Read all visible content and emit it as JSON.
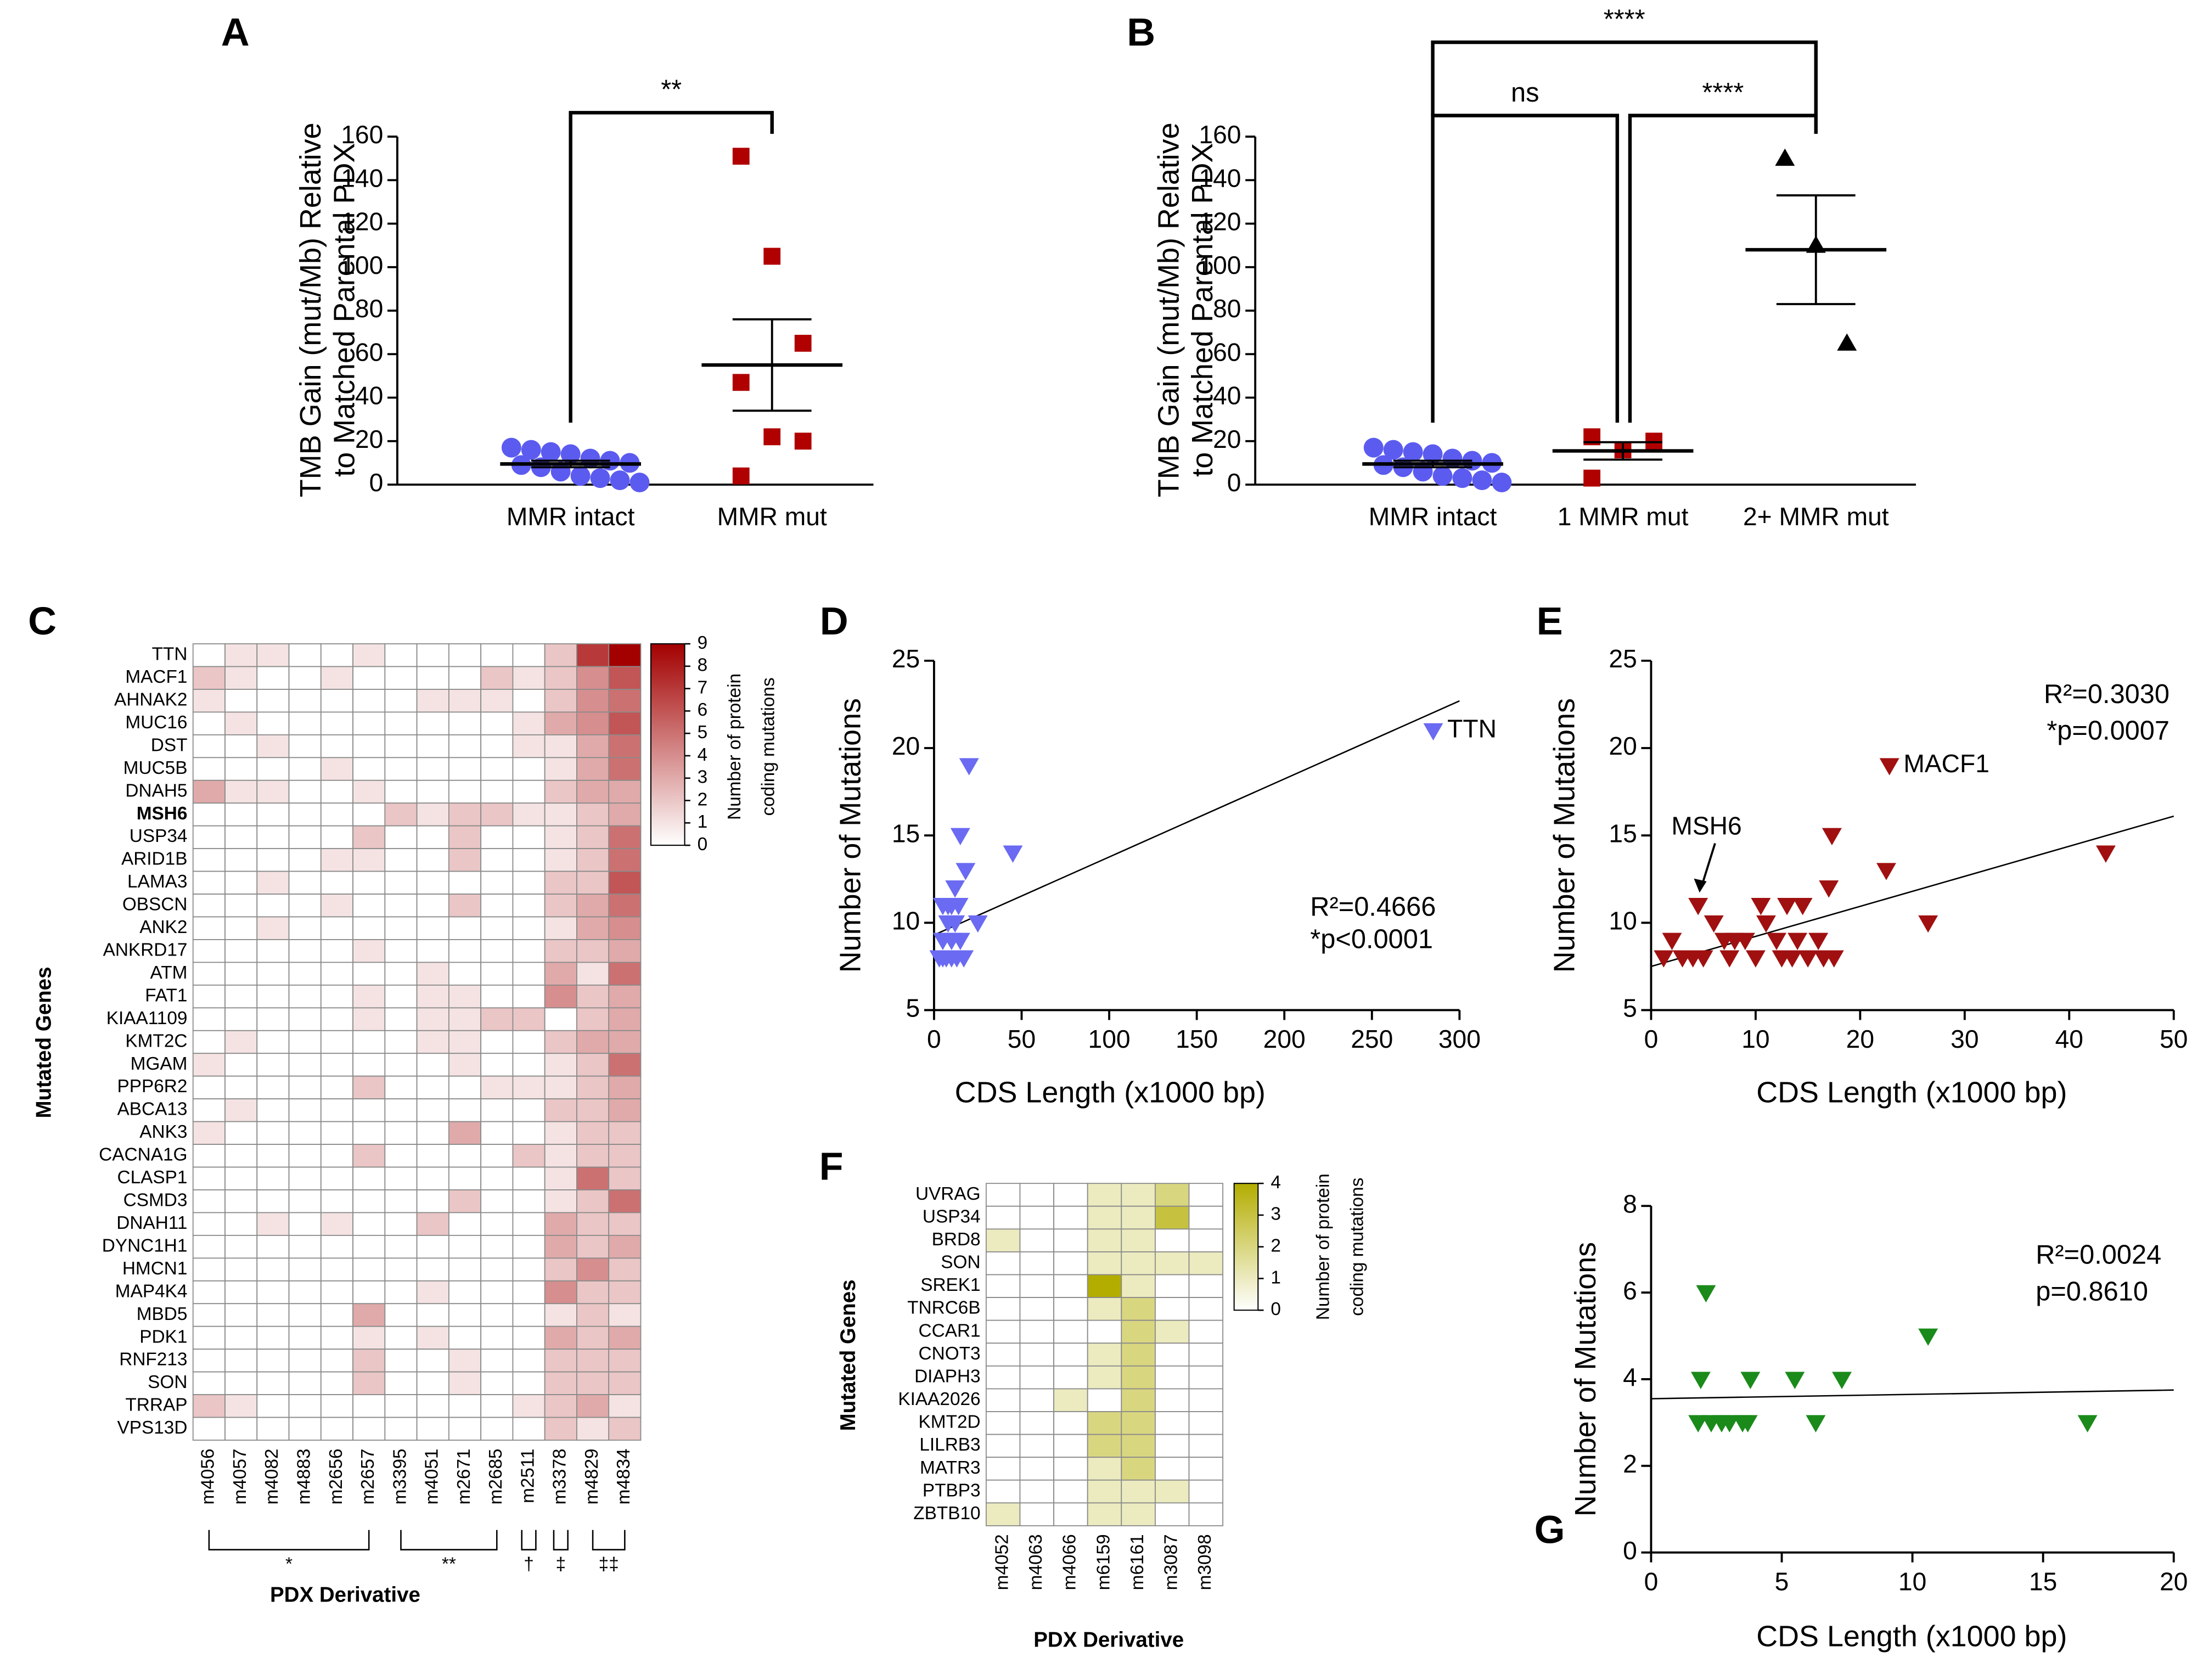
{
  "chart_data": [
    {
      "type": "dot",
      "label": "A",
      "y_label": [
        "TMB Gain (mut/Mb) Relative",
        "to Matched Parental PDX"
      ],
      "ylim": [
        0,
        160
      ],
      "yticks": [
        0,
        20,
        40,
        60,
        80,
        100,
        120,
        140,
        160
      ],
      "series": [
        {
          "name": "MMR intact",
          "color": "#5b5bf0",
          "marker": "circle",
          "values": [
            17,
            16,
            15,
            14,
            12,
            11,
            10,
            9,
            8,
            6,
            4,
            3,
            2,
            1
          ],
          "mean": 9.5,
          "sem": 1.5
        },
        {
          "name": "MMR mut",
          "color": "#b00000",
          "marker": "square",
          "values": [
            151,
            105,
            65,
            47,
            22,
            20,
            4
          ],
          "mean": 55,
          "sem": 21
        }
      ],
      "comparisons": [
        {
          "groups": [
            0,
            1
          ],
          "label": "**"
        }
      ]
    },
    {
      "type": "dot",
      "label": "B",
      "y_label": [
        "TMB Gain (mut/Mb) Relative",
        "to Matched Parental PDX"
      ],
      "ylim": [
        0,
        160
      ],
      "yticks": [
        0,
        20,
        40,
        60,
        80,
        100,
        120,
        140,
        160
      ],
      "series": [
        {
          "name": "MMR intact",
          "color": "#5b5bf0",
          "marker": "circle",
          "values": [
            17,
            16,
            15,
            14,
            12,
            11,
            10,
            9,
            8,
            6,
            4,
            3,
            2,
            1
          ],
          "mean": 9.5,
          "sem": 1.5
        },
        {
          "name": "1 MMR mut",
          "color": "#b00000",
          "marker": "square",
          "values": [
            22,
            16,
            20,
            3
          ],
          "mean": 15.5,
          "sem": 4
        },
        {
          "name": "2+ MMR mut",
          "color": "#000000",
          "marker": "triangle-up",
          "values": [
            150,
            110,
            65
          ],
          "mean": 108,
          "sem": 25
        }
      ],
      "comparisons": [
        {
          "groups": [
            0,
            1
          ],
          "label": "ns"
        },
        {
          "groups": [
            1,
            2
          ],
          "label": "****"
        },
        {
          "groups": [
            0,
            2
          ],
          "label": "****"
        }
      ]
    },
    {
      "type": "heatmap",
      "label": "C",
      "x_label": "PDX Derivative",
      "y_label": "Mutated Genes",
      "rows": [
        "TTN",
        "MACF1",
        "AHNAK2",
        "MUC16",
        "DST",
        "MUC5B",
        "DNAH5",
        "MSH6",
        "USP34",
        "ARID1B",
        "LAMA3",
        "OBSCN",
        "ANK2",
        "ANKRD17",
        "ATM",
        "FAT1",
        "KIAA1109",
        "KMT2C",
        "MGAM",
        "PPP6R2",
        "ABCA13",
        "ANK3",
        "CACNA1G",
        "CLASP1",
        "CSMD3",
        "DNAH11",
        "DYNC1H1",
        "HMCN1",
        "MAP4K4",
        "MBD5",
        "PDK1",
        "RNF213",
        "SON",
        "TRRAP",
        "VPS13D"
      ],
      "bold_row": 7,
      "columns": [
        "m4056",
        "m4057",
        "m4082",
        "m4883",
        "m2656",
        "m2657",
        "m3395",
        "m4051",
        "m2671",
        "m2685",
        "m2511",
        "m3378",
        "m4829",
        "m4834"
      ],
      "values": [
        [
          0,
          1,
          1,
          0,
          0,
          1,
          0,
          0,
          0,
          0,
          0,
          2,
          7,
          9
        ],
        [
          2,
          1,
          0,
          0,
          1,
          0,
          0,
          0,
          0,
          2,
          1,
          2,
          4,
          6
        ],
        [
          1,
          0,
          0,
          0,
          0,
          0,
          0,
          1,
          1,
          1,
          0,
          2,
          4,
          5
        ],
        [
          0,
          1,
          0,
          0,
          0,
          0,
          0,
          0,
          0,
          0,
          1,
          3,
          4,
          6
        ],
        [
          0,
          0,
          1,
          0,
          0,
          0,
          0,
          0,
          0,
          0,
          1,
          1,
          3,
          5
        ],
        [
          0,
          0,
          0,
          0,
          1,
          0,
          0,
          0,
          0,
          0,
          0,
          1,
          3,
          5
        ],
        [
          3,
          1,
          1,
          0,
          0,
          1,
          0,
          0,
          0,
          0,
          0,
          2,
          3,
          3
        ],
        [
          0,
          0,
          0,
          0,
          0,
          0,
          2,
          1,
          2,
          2,
          1,
          1,
          2,
          3
        ],
        [
          0,
          0,
          0,
          0,
          0,
          2,
          0,
          0,
          2,
          0,
          0,
          1,
          2,
          5
        ],
        [
          0,
          0,
          0,
          0,
          1,
          1,
          0,
          0,
          2,
          0,
          0,
          1,
          2,
          5
        ],
        [
          0,
          0,
          1,
          0,
          0,
          0,
          0,
          0,
          0,
          0,
          0,
          2,
          2,
          6
        ],
        [
          0,
          0,
          0,
          0,
          1,
          0,
          0,
          0,
          2,
          0,
          0,
          2,
          3,
          5
        ],
        [
          0,
          0,
          1,
          0,
          0,
          0,
          0,
          0,
          0,
          0,
          0,
          1,
          3,
          4
        ],
        [
          0,
          0,
          0,
          0,
          0,
          1,
          0,
          0,
          0,
          0,
          0,
          2,
          2,
          3
        ],
        [
          0,
          0,
          0,
          0,
          0,
          0,
          0,
          1,
          0,
          0,
          0,
          3,
          1,
          5
        ],
        [
          0,
          0,
          0,
          0,
          0,
          1,
          0,
          1,
          1,
          0,
          0,
          4,
          2,
          3
        ],
        [
          0,
          0,
          0,
          0,
          0,
          1,
          0,
          1,
          1,
          2,
          2,
          0,
          2,
          3
        ],
        [
          0,
          1,
          0,
          0,
          0,
          0,
          0,
          1,
          1,
          0,
          0,
          2,
          3,
          3
        ],
        [
          1,
          0,
          0,
          0,
          0,
          0,
          0,
          0,
          1,
          0,
          0,
          1,
          2,
          5
        ],
        [
          0,
          0,
          0,
          0,
          0,
          2,
          0,
          0,
          0,
          1,
          1,
          1,
          2,
          3
        ],
        [
          0,
          1,
          0,
          0,
          0,
          0,
          0,
          0,
          0,
          0,
          0,
          2,
          2,
          3
        ],
        [
          1,
          0,
          0,
          0,
          0,
          0,
          0,
          0,
          3,
          0,
          0,
          1,
          2,
          2
        ],
        [
          0,
          0,
          0,
          0,
          0,
          2,
          0,
          0,
          0,
          0,
          2,
          1,
          2,
          2
        ],
        [
          0,
          0,
          0,
          0,
          0,
          0,
          0,
          0,
          0,
          0,
          0,
          1,
          5,
          2
        ],
        [
          0,
          0,
          0,
          0,
          0,
          0,
          0,
          0,
          2,
          0,
          0,
          1,
          2,
          5
        ],
        [
          0,
          0,
          1,
          0,
          1,
          0,
          0,
          2,
          0,
          0,
          0,
          3,
          2,
          2
        ],
        [
          0,
          0,
          0,
          0,
          0,
          0,
          0,
          0,
          0,
          0,
          0,
          3,
          2,
          3
        ],
        [
          0,
          0,
          0,
          0,
          0,
          0,
          0,
          0,
          0,
          0,
          0,
          2,
          4,
          2
        ],
        [
          0,
          0,
          0,
          0,
          0,
          0,
          0,
          1,
          0,
          0,
          0,
          4,
          2,
          2
        ],
        [
          0,
          0,
          0,
          0,
          0,
          3,
          0,
          0,
          0,
          0,
          0,
          1,
          2,
          1
        ],
        [
          0,
          0,
          0,
          0,
          0,
          1,
          0,
          1,
          0,
          0,
          0,
          3,
          2,
          3
        ],
        [
          0,
          0,
          0,
          0,
          0,
          2,
          0,
          0,
          1,
          0,
          0,
          2,
          2,
          2
        ],
        [
          0,
          0,
          0,
          0,
          0,
          2,
          0,
          0,
          1,
          0,
          0,
          2,
          2,
          2
        ],
        [
          2,
          1,
          0,
          0,
          0,
          0,
          0,
          0,
          0,
          0,
          1,
          2,
          3,
          1
        ],
        [
          0,
          0,
          0,
          0,
          0,
          0,
          0,
          0,
          0,
          0,
          0,
          2,
          1,
          2
        ]
      ],
      "colorbar": {
        "label": [
          "Number of protein",
          "coding mutations"
        ],
        "lim": [
          0,
          9
        ],
        "ticks": [
          0,
          1,
          2,
          3,
          4,
          5,
          6,
          7,
          8,
          9
        ],
        "color": "#a30000"
      },
      "column_groups": [
        {
          "columns": [
            0,
            5
          ],
          "label": "*"
        },
        {
          "columns": [
            6,
            9
          ],
          "label": "**"
        },
        {
          "columns": [
            10,
            10
          ],
          "label": "†"
        },
        {
          "columns": [
            11,
            11
          ],
          "label": "‡"
        },
        {
          "columns": [
            12,
            13
          ],
          "label": "‡‡"
        }
      ]
    },
    {
      "type": "scatter",
      "label": "D",
      "x_label": "CDS Length (x1000 bp)",
      "y_label": "Number of Mutations",
      "x": [
        3,
        5,
        7,
        10,
        13,
        17,
        5,
        10,
        15,
        8,
        12,
        25,
        5,
        8,
        10,
        14,
        12,
        18,
        15,
        20,
        45,
        285
      ],
      "y": [
        8,
        8,
        8,
        8,
        8,
        8,
        9,
        9,
        9,
        10,
        10,
        10,
        11,
        11,
        11,
        11,
        12,
        13,
        15,
        19,
        14,
        21
      ],
      "color": "#6a6af2",
      "marker": "triangle-down",
      "xlim": [
        0,
        300
      ],
      "xticks": [
        0,
        50,
        100,
        150,
        200,
        250,
        300
      ],
      "ylim": [
        5,
        25
      ],
      "yticks": [
        5,
        10,
        15,
        20,
        25
      ],
      "fit": {
        "x": [
          0,
          300
        ],
        "y": [
          9.3,
          22.7
        ]
      },
      "annotations": [
        "R²=0.4666",
        "*p<0.0001"
      ],
      "point_labels": [
        {
          "index": 21,
          "text": "TTN"
        }
      ]
    },
    {
      "type": "scatter",
      "label": "E",
      "x_label": "CDS Length (x1000 bp)",
      "y_label": "Number of Mutations",
      "x": [
        1.2,
        2,
        3,
        4,
        4.5,
        5,
        6,
        7,
        7.5,
        8,
        9,
        10,
        10.5,
        11,
        12,
        12.5,
        13,
        13.5,
        14,
        14.5,
        15,
        16,
        16.5,
        17,
        17.3,
        17.5,
        22.5,
        22.8,
        26.5,
        43.5
      ],
      "y": [
        8,
        9,
        8,
        8,
        11,
        8,
        10,
        9,
        8,
        9,
        9,
        8,
        11,
        10,
        9,
        8,
        11,
        8,
        9,
        11,
        8,
        9,
        8,
        12,
        15,
        8,
        13,
        19,
        10,
        14
      ],
      "color": "#a01010",
      "marker": "triangle-down",
      "xlim": [
        0,
        50
      ],
      "xticks": [
        0,
        10,
        20,
        30,
        40,
        50
      ],
      "ylim": [
        5,
        25
      ],
      "yticks": [
        5,
        10,
        15,
        20,
        25
      ],
      "fit": {
        "x": [
          0,
          50
        ],
        "y": [
          7.5,
          16.1
        ]
      },
      "annotations": [
        "R²=0.3030",
        "*p=0.0007"
      ],
      "point_labels": [
        {
          "index": 27,
          "text": "MACF1"
        },
        {
          "index": 4,
          "text": "MSH6",
          "arrow": true
        }
      ]
    },
    {
      "type": "heatmap",
      "label": "F",
      "x_label": "PDX Derivative",
      "y_label": "Mutated Genes",
      "rows": [
        "UVRAG",
        "USP34",
        "BRD8",
        "SON",
        "SREK1",
        "TNRC6B",
        "CCAR1",
        "CNOT3",
        "DIAPH3",
        "KIAA2026",
        "KMT2D",
        "LILRB3",
        "MATR3",
        "PTBP3",
        "ZBTB10"
      ],
      "columns": [
        "m4052",
        "m4063",
        "m4066",
        "m6159",
        "m6161",
        "m3087",
        "m3098"
      ],
      "values": [
        [
          0,
          0,
          0,
          1,
          1,
          2,
          0
        ],
        [
          0,
          0,
          0,
          1,
          1,
          3,
          0
        ],
        [
          1,
          0,
          0,
          1,
          1,
          0,
          0
        ],
        [
          0,
          0,
          0,
          1,
          1,
          1,
          1
        ],
        [
          0,
          0,
          0,
          4,
          1,
          0,
          0
        ],
        [
          0,
          0,
          0,
          1,
          2,
          0,
          0
        ],
        [
          0,
          0,
          0,
          0,
          2,
          1,
          0
        ],
        [
          0,
          0,
          0,
          1,
          2,
          0,
          0
        ],
        [
          0,
          0,
          0,
          1,
          2,
          0,
          0
        ],
        [
          0,
          0,
          1,
          0,
          2,
          0,
          0
        ],
        [
          0,
          0,
          0,
          2,
          2,
          0,
          0
        ],
        [
          0,
          0,
          0,
          2,
          2,
          0,
          0
        ],
        [
          0,
          0,
          0,
          1,
          2,
          0,
          0
        ],
        [
          0,
          0,
          0,
          1,
          1,
          1,
          0
        ],
        [
          1,
          0,
          0,
          1,
          1,
          0,
          0
        ]
      ],
      "colorbar": {
        "label": [
          "Number of protein",
          "coding mutations"
        ],
        "lim": [
          0,
          4
        ],
        "ticks": [
          0,
          1,
          2,
          3,
          4
        ],
        "color": "#b3ad00"
      }
    },
    {
      "type": "scatter",
      "label": "G",
      "x_label": "CDS Length (x1000 bp)",
      "y_label": "Number of Mutations",
      "x": [
        1.8,
        1.9,
        2.1,
        2.3,
        2.7,
        3,
        3.5,
        3.7,
        3.8,
        5.5,
        6.3,
        7.3,
        10.6,
        16.7
      ],
      "y": [
        3,
        4,
        6,
        3,
        3,
        3,
        3,
        3,
        4,
        4,
        3,
        4,
        5,
        3
      ],
      "color": "#1a8a1a",
      "marker": "triangle-down",
      "xlim": [
        0,
        20
      ],
      "xticks": [
        0,
        5,
        10,
        15,
        20
      ],
      "ylim": [
        0,
        8
      ],
      "yticks": [
        0,
        2,
        4,
        6,
        8
      ],
      "fit": {
        "x": [
          0,
          20
        ],
        "y": [
          3.55,
          3.75
        ]
      },
      "annotations": [
        "R²=0.0024",
        "p=0.8610"
      ]
    }
  ]
}
